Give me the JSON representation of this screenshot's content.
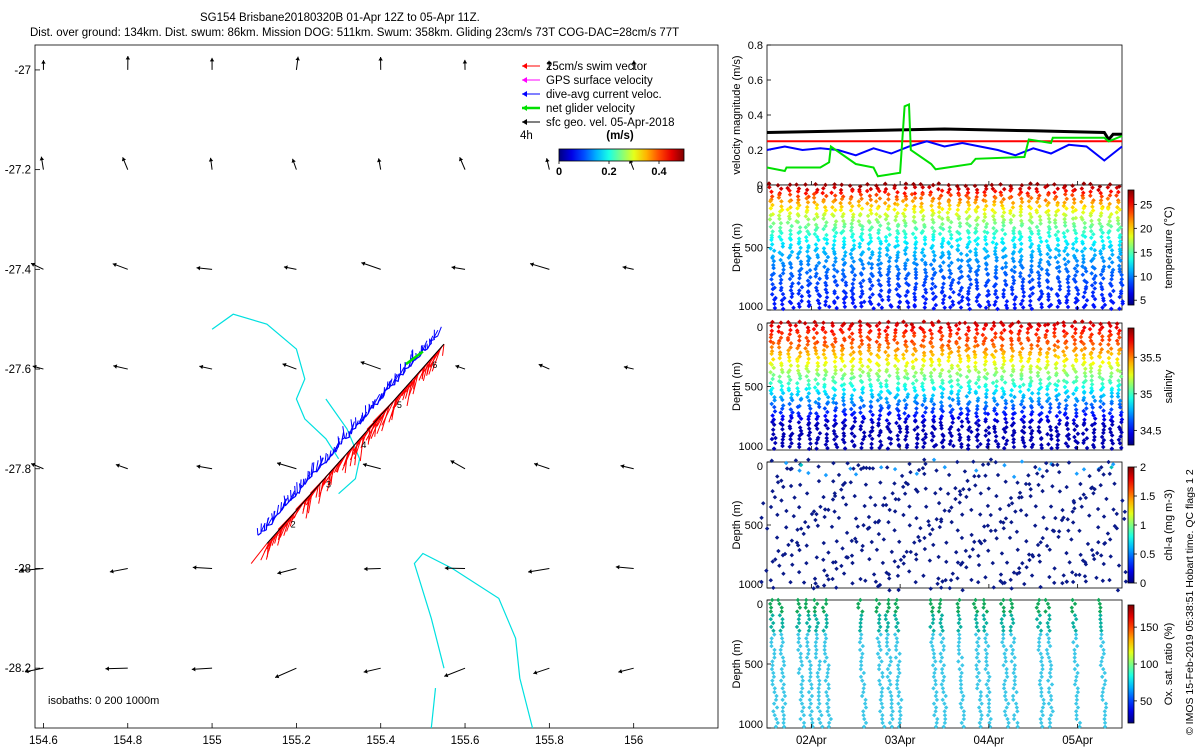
{
  "header": {
    "title": "SG154 Brisbane20180320B 01-Apr 12Z to 05-Apr 11Z.",
    "subtitle": "Dist. over ground: 134km. Dist. swum: 86km. Mission DOG: 511km. Swum: 358km. Gliding 23cm/s 73T COG-DAC=28cm/s 77T"
  },
  "footer": {
    "credit": "© IMOS 15-Feb-2019 05:38:51 Hobart time. QC flags 1  2",
    "isobaths": "isobaths: 0   200  1000m"
  },
  "colors": {
    "swim": "#ff0000",
    "gps": "#ff00ff",
    "dac": "#0000ff",
    "net": "#00e000",
    "geo": "#000000",
    "isobath": "#00e0e0"
  },
  "chart_data": [
    {
      "id": "map",
      "type": "scatter",
      "xlabel": "",
      "ylabel": "",
      "xlim": [
        154.58,
        156.2
      ],
      "ylim": [
        -28.32,
        -26.95
      ],
      "xticks": [
        "154.6",
        "154.8",
        "155",
        "155.2",
        "155.4",
        "155.6",
        "155.8",
        "156"
      ],
      "xtick_values": [
        154.6,
        154.8,
        155.0,
        155.2,
        155.4,
        155.6,
        155.8,
        156.0
      ],
      "yticks": [
        "-27",
        "-27.2",
        "-27.4",
        "-27.6",
        "-27.8",
        "-28",
        "-28.2"
      ],
      "ytick_values": [
        -27.0,
        -27.2,
        -27.4,
        -27.6,
        -27.8,
        -28.0,
        -28.2
      ],
      "legend": [
        {
          "label": "25cm/s swim vector",
          "color": "#ff0000"
        },
        {
          "label": "GPS surface velocity",
          "color": "#ff00ff"
        },
        {
          "label": "dive-avg current veloc.",
          "color": "#0000ff"
        },
        {
          "label": "net glider velocity",
          "color": "#00e000"
        },
        {
          "label": "sfc geo. vel. 05-Apr-2018",
          "color": "#000000"
        }
      ],
      "legend_extra": "4h",
      "colorbar": {
        "label": "(m/s)",
        "ticks": [
          "0",
          "0.2",
          "0.4"
        ],
        "range": [
          0,
          0.5
        ]
      },
      "track": {
        "start": [
          155.13,
          -27.95
        ],
        "end": [
          155.55,
          -27.55
        ],
        "dac_offset_deg": 0.025,
        "label_numbers": [
          "2",
          "3",
          "4",
          "5",
          "6"
        ]
      },
      "geo_arrows": {
        "lons": [
          154.6,
          154.8,
          155.0,
          155.2,
          155.4,
          155.6,
          155.8,
          156.0
        ],
        "lats": [
          -27.0,
          -27.2,
          -27.4,
          -27.6,
          -27.8,
          -28.0,
          -28.2
        ]
      },
      "isobath_north": [
        [
          155.0,
          -27.52
        ],
        [
          155.05,
          -27.49
        ],
        [
          155.13,
          -27.51
        ],
        [
          155.2,
          -27.56
        ],
        [
          155.22,
          -27.62
        ],
        [
          155.2,
          -27.66
        ],
        [
          155.22,
          -27.7
        ],
        [
          155.27,
          -27.74
        ],
        [
          155.3,
          -27.78
        ]
      ],
      "isobath_north_arm": [
        [
          155.27,
          -27.66
        ],
        [
          155.32,
          -27.72
        ],
        [
          155.35,
          -27.78
        ],
        [
          155.34,
          -27.82
        ],
        [
          155.3,
          -27.85
        ]
      ],
      "isobath_south": [
        [
          155.55,
          -28.2
        ],
        [
          155.52,
          -28.1
        ],
        [
          155.48,
          -27.99
        ],
        [
          155.5,
          -27.97
        ],
        [
          155.57,
          -28.0
        ],
        [
          155.68,
          -28.06
        ],
        [
          155.72,
          -28.14
        ],
        [
          155.73,
          -28.22
        ],
        [
          155.76,
          -28.32
        ]
      ],
      "isobath_south_inner": [
        [
          155.52,
          -28.32
        ],
        [
          155.53,
          -28.24
        ]
      ]
    },
    {
      "id": "velocity",
      "type": "line",
      "ylabel": "velocity magnitude (m/s)",
      "ylim": [
        0,
        0.8
      ],
      "yticks": [
        "0",
        "0.2",
        "0.4",
        "0.6",
        "0.8"
      ],
      "ytick_values": [
        0,
        0.2,
        0.4,
        0.6,
        0.8
      ],
      "xlim": [
        1.5,
        5.5
      ],
      "series": [
        {
          "name": "GPS surface velocity",
          "color": "#000000",
          "x": [
            1.5,
            2.5,
            3.5,
            4.5,
            5.3,
            5.35,
            5.4,
            5.5
          ],
          "y": [
            0.3,
            0.31,
            0.32,
            0.31,
            0.3,
            0.26,
            0.29,
            0.29
          ]
        },
        {
          "name": "25cm/s swim vector",
          "color": "#ff0000",
          "x": [
            1.5,
            5.5
          ],
          "y": [
            0.25,
            0.25
          ]
        },
        {
          "name": "dive-avg current veloc.",
          "color": "#0000ff",
          "x": [
            1.5,
            1.7,
            1.9,
            2.1,
            2.3,
            2.5,
            2.7,
            2.9,
            3.1,
            3.3,
            3.5,
            3.7,
            3.9,
            4.1,
            4.3,
            4.5,
            4.7,
            4.9,
            5.1,
            5.3,
            5.5
          ],
          "y": [
            0.2,
            0.22,
            0.2,
            0.21,
            0.2,
            0.17,
            0.21,
            0.18,
            0.22,
            0.25,
            0.22,
            0.24,
            0.22,
            0.2,
            0.17,
            0.21,
            0.18,
            0.23,
            0.22,
            0.14,
            0.22
          ]
        },
        {
          "name": "net glider velocity",
          "color": "#00e000",
          "x": [
            1.5,
            1.7,
            1.72,
            2.1,
            2.2,
            2.22,
            2.5,
            2.7,
            2.75,
            3.0,
            3.05,
            3.1,
            3.12,
            3.35,
            3.4,
            3.8,
            3.85,
            4.4,
            4.45,
            4.7,
            4.72,
            5.3,
            5.35,
            5.5
          ],
          "y": [
            0.1,
            0.08,
            0.1,
            0.1,
            0.13,
            0.22,
            0.12,
            0.1,
            0.05,
            0.07,
            0.45,
            0.46,
            0.2,
            0.12,
            0.09,
            0.12,
            0.15,
            0.16,
            0.26,
            0.24,
            0.27,
            0.27,
            0.25,
            0.28
          ]
        }
      ]
    },
    {
      "id": "temperature",
      "type": "scatter",
      "ylabel": "Depth (m)",
      "yticks": [
        "0",
        "500",
        "1000"
      ],
      "ytick_values": [
        0,
        500,
        1000
      ],
      "colorbar": {
        "label": "temperature (°C)",
        "ticks": [
          "5",
          "10",
          "15",
          "20",
          "25"
        ],
        "tick_values": [
          5,
          10,
          15,
          20,
          25
        ],
        "range": [
          4,
          28
        ]
      },
      "variable": "temperature",
      "surface_value": 27.5,
      "deep_value": 4.5
    },
    {
      "id": "salinity",
      "type": "scatter",
      "ylabel": "Depth (m)",
      "yticks": [
        "0",
        "500",
        "1000"
      ],
      "ytick_values": [
        0,
        500,
        1000
      ],
      "colorbar": {
        "label": "salinity",
        "ticks": [
          "34.5",
          "35",
          "35.5"
        ],
        "tick_values": [
          34.5,
          35.0,
          35.5
        ],
        "range": [
          34.3,
          35.9
        ]
      },
      "variable": "salinity",
      "surface_value": 35.8,
      "deep_value": 34.4
    },
    {
      "id": "chla",
      "type": "scatter",
      "ylabel": "Depth (m)",
      "yticks": [
        "0",
        "500",
        "1000"
      ],
      "ytick_values": [
        0,
        500,
        1000
      ],
      "colorbar": {
        "label": "chl-a (mg m-3)",
        "ticks": [
          "0",
          "0.5",
          "1",
          "1.5",
          "2"
        ],
        "tick_values": [
          0,
          0.5,
          1,
          1.5,
          2
        ],
        "range": [
          0,
          2
        ]
      },
      "variable": "chl-a"
    },
    {
      "id": "oxygen",
      "type": "scatter",
      "ylabel": "Depth (m)",
      "yticks": [
        "0",
        "500",
        "1000"
      ],
      "ytick_values": [
        0,
        500,
        1000
      ],
      "colorbar": {
        "label": "Ox. sat. ratio (%)",
        "ticks": [
          "50",
          "100",
          "150"
        ],
        "tick_values": [
          50,
          100,
          150
        ],
        "range": [
          20,
          180
        ]
      },
      "variable": "oxygen",
      "xticks": [
        "02Apr",
        "03Apr",
        "04Apr",
        "05Apr"
      ],
      "xtick_values": [
        2,
        3,
        4,
        5
      ],
      "xlim": [
        1.5,
        5.5
      ]
    }
  ]
}
